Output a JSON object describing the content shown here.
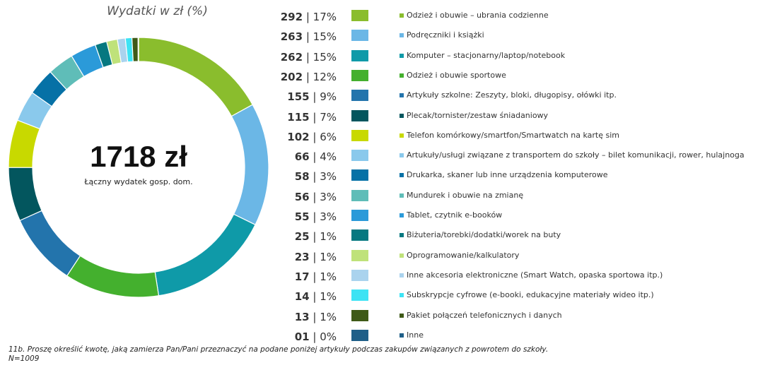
{
  "chart_data": {
    "type": "pie",
    "title": "Wydatki w zł (%)",
    "center_total": "1718 zł",
    "center_caption": "Łączny wydatek gosp. dom.",
    "items": [
      {
        "value": "292",
        "percent": "17%",
        "share": 292,
        "color": "#8abd2d",
        "label": "Odzież i obuwie – ubrania codzienne"
      },
      {
        "value": "263",
        "percent": "15%",
        "share": 263,
        "color": "#6bb7e6",
        "label": "Podręczniki i książki"
      },
      {
        "value": "262",
        "percent": "15%",
        "share": 262,
        "color": "#0f9aa8",
        "label": "Komputer – stacjonarny/laptop/notebook"
      },
      {
        "value": "202",
        "percent": "12%",
        "share": 202,
        "color": "#44b02e",
        "label": "Odzież i obuwie sportowe"
      },
      {
        "value": "155",
        "percent": "9%",
        "share": 155,
        "color": "#2374ac",
        "label": "Artykuły szkolne: Zeszyty, bloki, długopisy, ołówki itp."
      },
      {
        "value": "115",
        "percent": "7%",
        "share": 115,
        "color": "#03565e",
        "label": "Plecak/tornister/zestaw śniadaniowy"
      },
      {
        "value": "102",
        "percent": "6%",
        "share": 102,
        "color": "#c8d900",
        "label": "Telefon komórkowy/smartfon/Smartwatch na kartę sim"
      },
      {
        "value": "66",
        "percent": "4%",
        "share": 66,
        "color": "#8ac9ec",
        "label": "Artukuły/usługi związane z transportem do szkoły – bilet komunikacji, rower, hulajnoga"
      },
      {
        "value": "58",
        "percent": "3%",
        "share": 58,
        "color": "#0671a6",
        "label": "Drukarka, skaner lub inne urządzenia komputerowe"
      },
      {
        "value": "56",
        "percent": "3%",
        "share": 56,
        "color": "#5fbdb8",
        "label": "Mundurek i obuwie na zmianę"
      },
      {
        "value": "55",
        "percent": "3%",
        "share": 55,
        "color": "#2b9ad9",
        "label": "Tablet, czytnik e-booków"
      },
      {
        "value": "25",
        "percent": "1%",
        "share": 25,
        "color": "#067880",
        "label": "Biżuteria/torebki/dodatki/worek na buty"
      },
      {
        "value": "23",
        "percent": "1%",
        "share": 23,
        "color": "#bfe27a",
        "label": "Oprogramowanie/kalkulatory"
      },
      {
        "value": "17",
        "percent": "1%",
        "share": 17,
        "color": "#aad3ee",
        "label": "Inne akcesoria elektroniczne (Smart Watch, opaska sportowa itp.)"
      },
      {
        "value": "14",
        "percent": "1%",
        "share": 14,
        "color": "#3de3f4",
        "label": "Subskrypcje cyfrowe (e-booki, edukacyjne materiały wideo itp.)"
      },
      {
        "value": "13",
        "percent": "1%",
        "share": 13,
        "color": "#3f5a18",
        "label": "Pakiet połączeń telefonicznych i danych"
      },
      {
        "value": "01",
        "percent": "0%",
        "share": 1,
        "color": "#1f5f88",
        "label": "Inne"
      }
    ]
  },
  "footnote": {
    "question": "11b. Proszę określić kwotę, jaką zamierza Pan/Pani przeznaczyć na podane poniżej artykuły podczas zakupów związanych z powrotem do szkoły.",
    "sample": "N=1009"
  }
}
